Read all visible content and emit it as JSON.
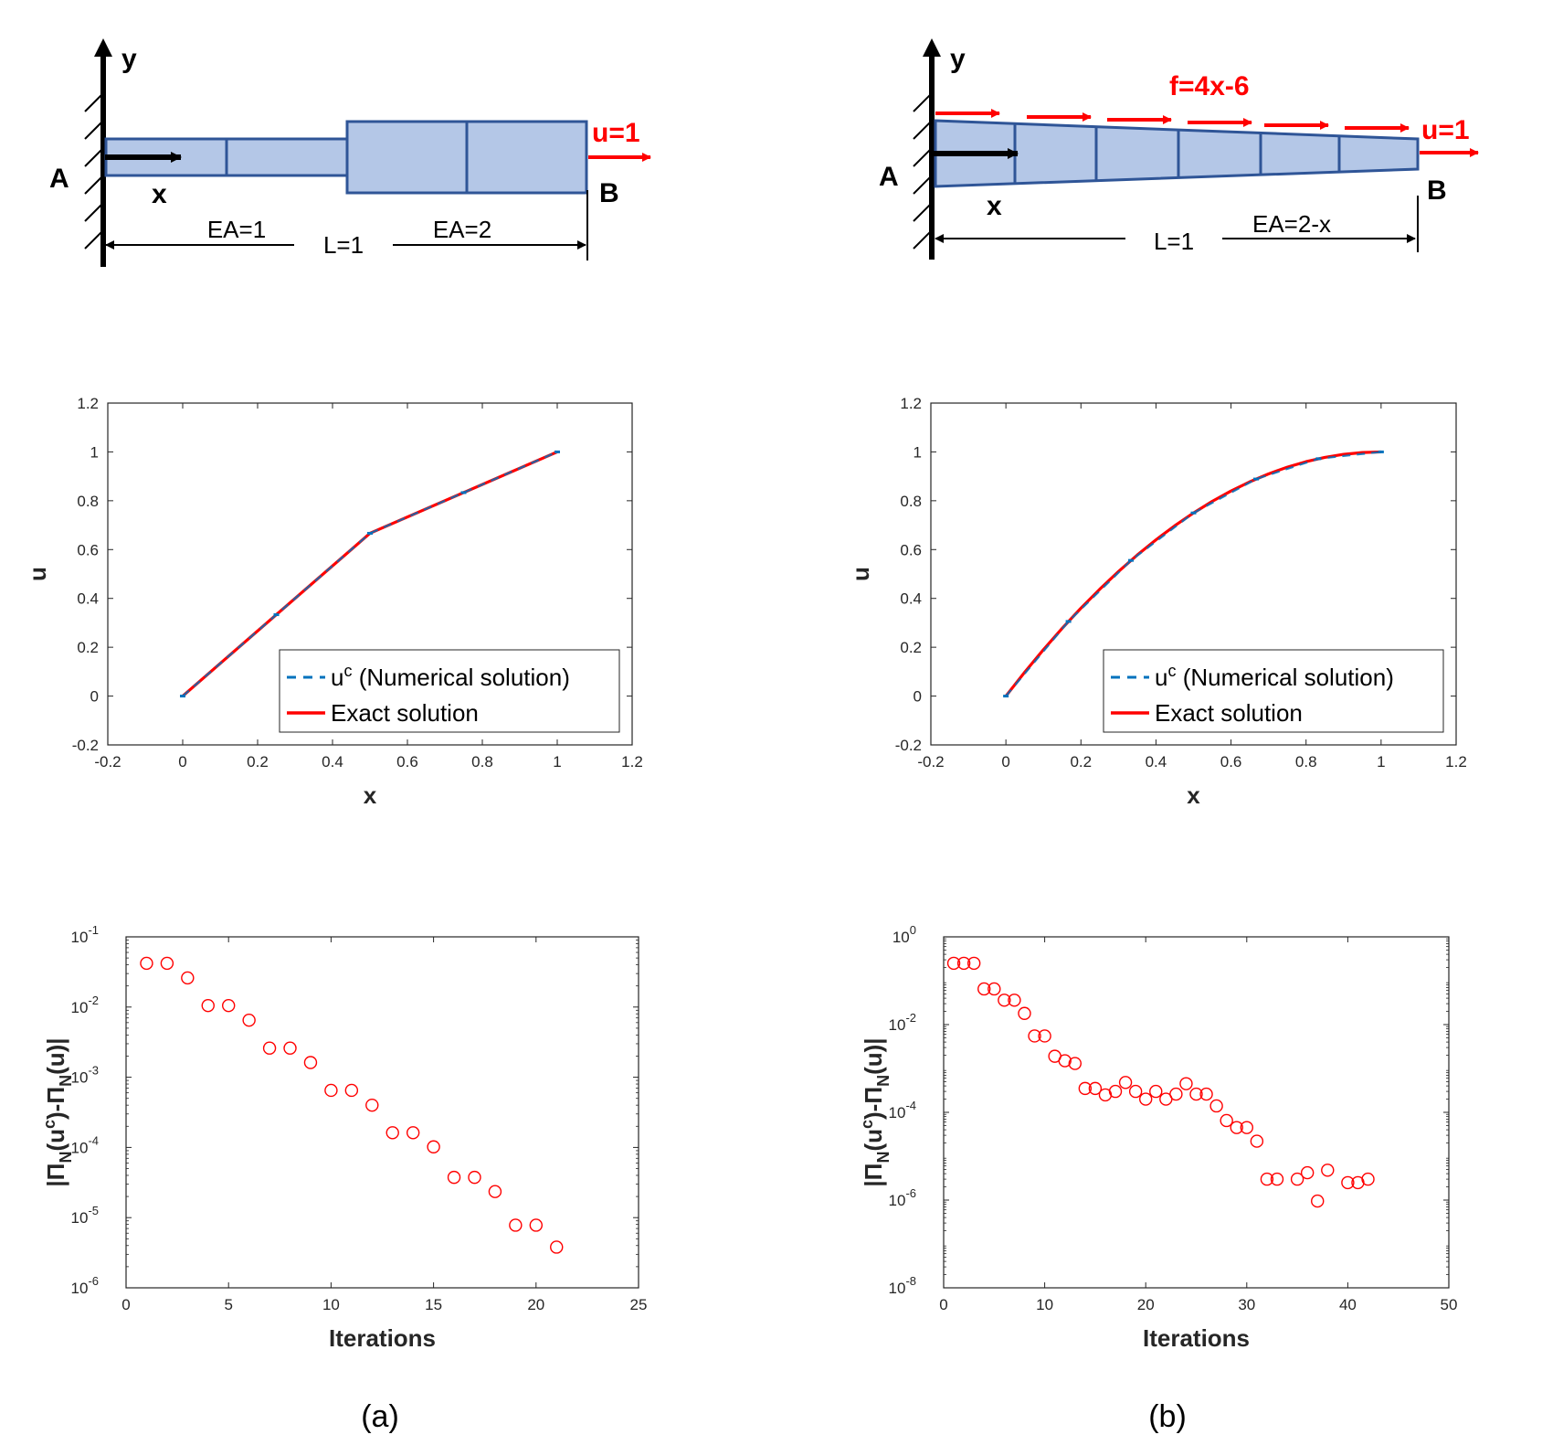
{
  "panels": [
    {
      "caption": "(a)",
      "diagram": {
        "axis_y": "y",
        "axis_x": "x",
        "point_a": "A",
        "point_b": "B",
        "end_condition": "u=1",
        "span_label": "L=1",
        "stiffness_left": "EA=1",
        "stiffness_right": "EA=2"
      }
    },
    {
      "caption": "(b)",
      "diagram": {
        "axis_y": "y",
        "axis_x": "x",
        "point_a": "A",
        "point_b": "B",
        "end_condition": "u=1",
        "span_label": "L=1",
        "stiffness": "EA=2-x",
        "load": "f=4x-6"
      }
    }
  ],
  "colors": {
    "bar_fill": "#b4c7e7",
    "bar_edge": "#2f5597",
    "load_red": "#ff0000",
    "numerical_blue": "#0072bd",
    "exact_red": "#ff0000"
  },
  "chart_data": [
    {
      "id": "a-displacement",
      "type": "line",
      "xlabel": "x",
      "ylabel": "u",
      "xlim": [
        -0.2,
        1.2
      ],
      "ylim": [
        -0.2,
        1.2
      ],
      "xticks": [
        -0.2,
        0,
        0.2,
        0.4,
        0.6,
        0.8,
        1,
        1.2
      ],
      "yticks": [
        -0.2,
        0,
        0.2,
        0.4,
        0.6,
        0.8,
        1,
        1.2
      ],
      "legend_position": "bottom-right",
      "series": [
        {
          "name": "Numerical solution",
          "legend_base": "u",
          "legend_sup": "c",
          "legend_rest": " (Numerical solution)",
          "style": "dashed",
          "x": [
            0,
            0.25,
            0.5,
            0.75,
            1
          ],
          "y": [
            0,
            0.3333,
            0.6667,
            0.8333,
            1
          ]
        },
        {
          "name": "Exact solution",
          "style": "solid",
          "x": [
            0,
            0.5,
            1
          ],
          "y": [
            0,
            0.6667,
            1
          ]
        }
      ]
    },
    {
      "id": "b-displacement",
      "type": "line",
      "xlabel": "x",
      "ylabel": "u",
      "xlim": [
        -0.2,
        1.2
      ],
      "ylim": [
        -0.2,
        1.2
      ],
      "xticks": [
        -0.2,
        0,
        0.2,
        0.4,
        0.6,
        0.8,
        1,
        1.2
      ],
      "yticks": [
        -0.2,
        0,
        0.2,
        0.4,
        0.6,
        0.8,
        1,
        1.2
      ],
      "legend_position": "bottom-right",
      "series": [
        {
          "name": "Numerical solution",
          "legend_base": "u",
          "legend_sup": "c",
          "legend_rest": " (Numerical solution)",
          "style": "dashed",
          "x": [
            0,
            0.1667,
            0.3333,
            0.5,
            0.6667,
            0.8333,
            1
          ],
          "y": [
            0,
            0.3056,
            0.5556,
            0.75,
            0.8889,
            0.9722,
            1
          ]
        },
        {
          "name": "Exact solution",
          "style": "solid",
          "x": [
            0,
            0.05,
            0.1,
            0.15,
            0.2,
            0.25,
            0.3,
            0.35,
            0.4,
            0.45,
            0.5,
            0.55,
            0.6,
            0.65,
            0.7,
            0.75,
            0.8,
            0.85,
            0.9,
            0.95,
            1
          ],
          "y": [
            0,
            0.0975,
            0.19,
            0.2775,
            0.36,
            0.4375,
            0.51,
            0.5775,
            0.64,
            0.6975,
            0.75,
            0.7975,
            0.84,
            0.8775,
            0.91,
            0.9375,
            0.96,
            0.9775,
            0.99,
            0.9975,
            1
          ]
        }
      ]
    },
    {
      "id": "a-convergence",
      "type": "scatter",
      "yscale": "log",
      "xlabel": "Iterations",
      "ylabel": "|Π_N(u^c)-Π_N(u)|",
      "ylabel_parts": [
        "|Π",
        "N",
        "(u",
        "c",
        ")-Π",
        "N",
        "(u)|"
      ],
      "xlim": [
        0,
        25
      ],
      "ylim_exp": [
        -6,
        -1
      ],
      "xticks": [
        0,
        5,
        10,
        15,
        20,
        25
      ],
      "ytick_exponents": [
        -6,
        -5,
        -4,
        -3,
        -2,
        -1
      ],
      "ytick_base": "10",
      "ytick_sup": [
        "-6",
        "-5",
        "-4",
        "-3",
        "-2",
        "-1"
      ],
      "marker": "circle",
      "x": [
        1,
        2,
        3,
        4,
        5,
        6,
        7,
        8,
        9,
        10,
        11,
        12,
        13,
        14,
        15,
        16,
        17,
        18,
        19,
        20,
        21
      ],
      "y": [
        0.042,
        0.042,
        0.026,
        0.0105,
        0.0105,
        0.0065,
        0.0026,
        0.0026,
        0.00162,
        0.00065,
        0.00065,
        0.0004,
        0.000162,
        0.000162,
        0.000102,
        3.75e-05,
        3.75e-05,
        2.35e-05,
        7.8e-06,
        7.8e-06,
        3.8e-06
      ]
    },
    {
      "id": "b-convergence",
      "type": "scatter",
      "yscale": "log",
      "xlabel": "Iterations",
      "ylabel": "|Π_N(u^c)-Π_N(u)|",
      "ylabel_parts": [
        "|Π",
        "N",
        "(u",
        "c",
        ")-Π",
        "N",
        "(u)|"
      ],
      "xlim": [
        0,
        50
      ],
      "ylim_exp": [
        -8,
        0
      ],
      "xticks": [
        0,
        10,
        20,
        30,
        40,
        50
      ],
      "ytick_exponents": [
        -8,
        -6,
        -4,
        -2,
        0
      ],
      "ytick_base": "10",
      "ytick_sup": [
        "-8",
        "-6",
        "-4",
        "-2",
        "0"
      ],
      "marker": "circle",
      "x": [
        1,
        2,
        3,
        4,
        5,
        6,
        7,
        8,
        9,
        10,
        11,
        12,
        13,
        14,
        15,
        16,
        17,
        18,
        19,
        20,
        21,
        22,
        23,
        24,
        25,
        26,
        27,
        28,
        29,
        30,
        31,
        32,
        33,
        35,
        36,
        37,
        38,
        40,
        41,
        42
      ],
      "y": [
        0.25,
        0.25,
        0.25,
        0.065,
        0.065,
        0.036,
        0.036,
        0.018,
        0.0055,
        0.0055,
        0.0019,
        0.0015,
        0.0013,
        0.00035,
        0.00035,
        0.00025,
        0.0003,
        0.00048,
        0.0003,
        0.0002,
        0.0003,
        0.0002,
        0.00026,
        0.00045,
        0.00026,
        0.00026,
        0.00014,
        6.5e-05,
        4.5e-05,
        4.5e-05,
        2.2e-05,
        3e-06,
        3e-06,
        3e-06,
        4.2e-06,
        9.5e-07,
        4.8e-06,
        2.5e-06,
        2.5e-06,
        3e-06
      ]
    }
  ]
}
